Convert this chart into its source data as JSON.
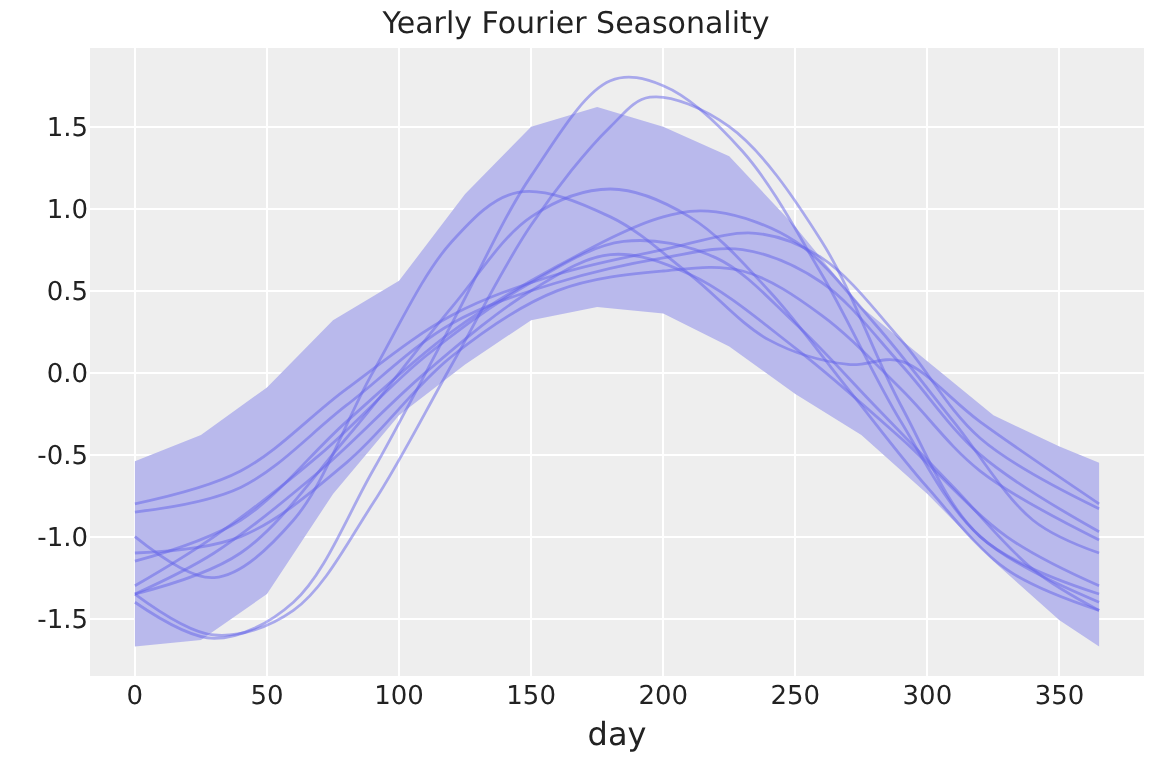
{
  "chart_data": {
    "type": "line",
    "title": "Yearly Fourier Seasonality",
    "xlabel": "day",
    "xlim": [
      -17,
      382
    ],
    "xticks": [
      0,
      50,
      100,
      150,
      200,
      250,
      300,
      350
    ],
    "ylim": [
      -1.85,
      1.98
    ],
    "yticks": [
      -1.5,
      {
        "value": -1,
        "label": "-1.0"
      },
      -0.5,
      {
        "value": 0,
        "label": "0.0"
      },
      0.5,
      {
        "value": 1,
        "label": "1.0"
      },
      1.5
    ],
    "grid": true,
    "line_style": "solid",
    "marker": "none",
    "series": [
      {
        "color": "#b9b9ec",
        "x": [
          0,
          25,
          50,
          75,
          100,
          125,
          150,
          175,
          200,
          225,
          250,
          275,
          300,
          325,
          350,
          365
        ],
        "values": [
          null,
          null,
          null,
          null,
          null,
          null,
          null,
          null,
          null,
          null,
          null,
          null,
          null,
          null,
          null,
          null
        ],
        "lower": [
          -1.67,
          -1.63,
          -1.35,
          -0.74,
          -0.26,
          0.05,
          0.32,
          0.4,
          0.36,
          0.16,
          -0.13,
          -0.38,
          -0.74,
          -1.15,
          -1.51,
          -1.67
        ],
        "upper": [
          -0.54,
          -0.38,
          -0.09,
          0.32,
          0.56,
          1.09,
          1.5,
          1.62,
          1.5,
          1.32,
          0.89,
          0.4,
          0.07,
          -0.26,
          -0.45,
          -0.55
        ]
      },
      {
        "color": "#6464ea",
        "x": [
          0,
          30,
          60,
          90,
          120,
          150,
          180,
          200,
          230,
          260,
          290,
          320,
          365
        ],
        "values": [
          -1.4,
          -1.62,
          -1.4,
          -0.6,
          0.3,
          1.2,
          1.78,
          1.75,
          1.35,
          0.6,
          -0.3,
          -1.0,
          -1.4
        ]
      },
      {
        "color": "#6464ea",
        "x": [
          0,
          30,
          60,
          90,
          120,
          150,
          180,
          195,
          225,
          260,
          290,
          320,
          365
        ],
        "values": [
          -1.35,
          -1.6,
          -1.45,
          -0.8,
          0.05,
          0.9,
          1.5,
          1.68,
          1.5,
          0.8,
          -0.2,
          -1.0,
          -1.35
        ]
      },
      {
        "color": "#6464ea",
        "x": [
          0,
          30,
          60,
          90,
          120,
          145,
          180,
          210,
          240,
          270,
          290,
          320,
          365
        ],
        "values": [
          -1.0,
          -1.25,
          -0.9,
          0.0,
          0.8,
          1.1,
          0.95,
          0.6,
          0.2,
          0.05,
          0.07,
          -0.3,
          -0.8
        ]
      },
      {
        "color": "#6464ea",
        "x": [
          0,
          40,
          80,
          120,
          150,
          180,
          210,
          240,
          270,
          300,
          330,
          365
        ],
        "values": [
          -1.35,
          -1.1,
          -0.4,
          0.4,
          0.95,
          1.12,
          0.95,
          0.5,
          -0.1,
          -0.7,
          -1.2,
          -1.45
        ]
      },
      {
        "color": "#6464ea",
        "x": [
          0,
          40,
          80,
          120,
          160,
          200,
          220,
          250,
          280,
          310,
          340,
          365
        ],
        "values": [
          -1.15,
          -0.9,
          -0.3,
          0.25,
          0.65,
          0.95,
          0.98,
          0.8,
          0.3,
          -0.3,
          -0.9,
          -1.1
        ]
      },
      {
        "color": "#6464ea",
        "x": [
          0,
          40,
          80,
          120,
          160,
          200,
          235,
          260,
          290,
          320,
          365
        ],
        "values": [
          -0.8,
          -0.6,
          -0.1,
          0.35,
          0.6,
          0.75,
          0.85,
          0.7,
          0.2,
          -0.4,
          -0.83
        ]
      },
      {
        "color": "#6464ea",
        "x": [
          0,
          40,
          80,
          120,
          160,
          200,
          230,
          260,
          290,
          320,
          365
        ],
        "values": [
          -0.85,
          -0.7,
          -0.2,
          0.3,
          0.55,
          0.7,
          0.75,
          0.55,
          0.05,
          -0.5,
          -0.97
        ]
      },
      {
        "color": "#6464ea",
        "x": [
          0,
          30,
          70,
          110,
          150,
          185,
          220,
          250,
          280,
          310,
          340,
          365
        ],
        "values": [
          -1.3,
          -1.0,
          -0.5,
          0.1,
          0.55,
          0.8,
          0.7,
          0.3,
          -0.2,
          -0.7,
          -1.2,
          -1.45
        ]
      },
      {
        "color": "#6464ea",
        "x": [
          0,
          40,
          80,
          120,
          160,
          200,
          230,
          260,
          290,
          320,
          365
        ],
        "values": [
          -1.1,
          -1.0,
          -0.55,
          0.1,
          0.5,
          0.62,
          0.62,
          0.35,
          -0.1,
          -0.6,
          -1.02
        ]
      },
      {
        "color": "#6464ea",
        "x": [
          0,
          30,
          70,
          110,
          150,
          180,
          210,
          250,
          290,
          330,
          365
        ],
        "values": [
          -1.35,
          -1.1,
          -0.6,
          0.0,
          0.5,
          0.72,
          0.6,
          0.15,
          -0.4,
          -1.0,
          -1.3
        ]
      }
    ]
  }
}
